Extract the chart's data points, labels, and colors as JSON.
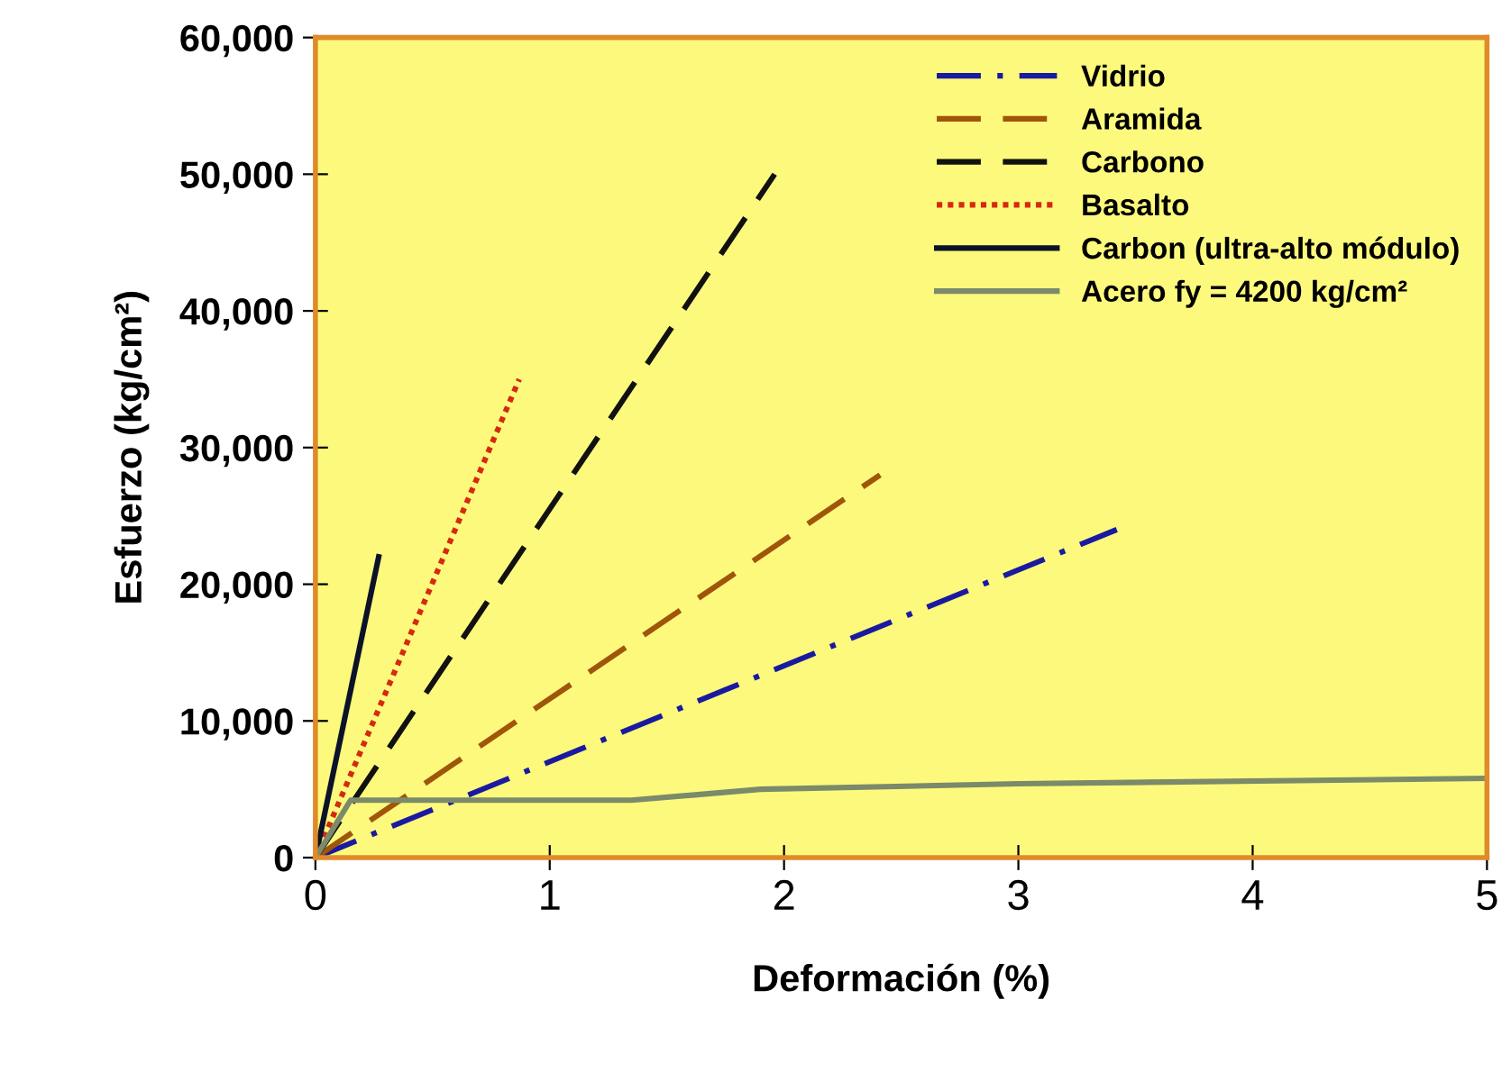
{
  "chart_data": {
    "type": "line",
    "xlabel": "Deformación (%)",
    "ylabel": "Esfuerzo (kg/cm²)",
    "xlim": [
      0,
      5
    ],
    "xticks": [
      0,
      1,
      2,
      3,
      4,
      5
    ],
    "ylim": [
      0,
      60000
    ],
    "yticks": [
      {
        "value": 0,
        "label": "0"
      },
      {
        "value": 10000,
        "label": "10,000"
      },
      {
        "value": 20000,
        "label": "20,000"
      },
      {
        "value": 30000,
        "label": "30,000"
      },
      {
        "value": 40000,
        "label": "40,000"
      },
      {
        "value": 50000,
        "label": "50,000"
      },
      {
        "value": 60000,
        "label": "60,000"
      }
    ],
    "grid": false,
    "legend": "top right",
    "series": [
      {
        "name": "Vidrio",
        "color": "#1a1aa0",
        "line_style": "dashdot",
        "x": [
          0,
          3.42
        ],
        "values": [
          0,
          24000
        ]
      },
      {
        "name": "Aramida",
        "color": "#a0560a",
        "line_style": "dashed",
        "x": [
          0,
          2.41
        ],
        "values": [
          0,
          28000
        ]
      },
      {
        "name": "Carbono",
        "color": "#111111",
        "line_style": "dashed",
        "x": [
          0,
          1.96
        ],
        "values": [
          0,
          50000
        ]
      },
      {
        "name": "Basalto",
        "color": "#d42a10",
        "line_style": "dotted",
        "x": [
          0,
          0.87
        ],
        "values": [
          0,
          35000
        ]
      },
      {
        "name": "Carbon (ultra-alto módulo)",
        "color": "#0c1228",
        "line_style": "solid",
        "x": [
          0,
          0.27
        ],
        "values": [
          0,
          22000
        ]
      },
      {
        "name": "Acero fy = 4200 kg/cm²",
        "color": "#7a8a6a",
        "line_style": "solid",
        "x": [
          0,
          0.15,
          1.35,
          1.9,
          3,
          5
        ],
        "values": [
          0,
          4200,
          4200,
          5000,
          5400,
          5800
        ]
      }
    ]
  }
}
